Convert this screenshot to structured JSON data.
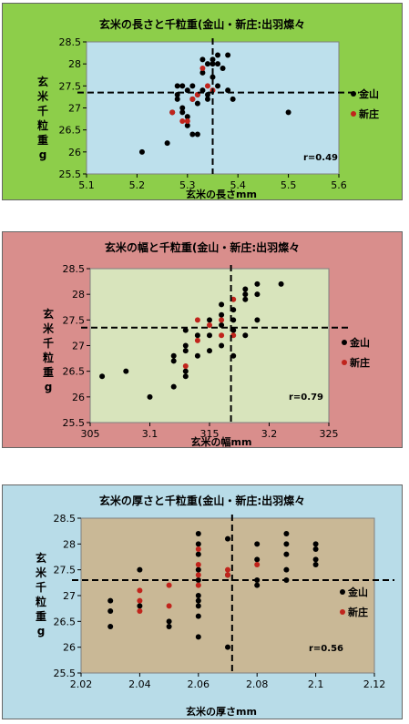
{
  "chart_data": [
    {
      "type": "scatter",
      "title": "玄米の長さと千粒重(金山・新庄:出羽燦々",
      "xlabel": "玄米の長さmm",
      "ylabel": "玄米千粒重g",
      "xlim": [
        5.1,
        5.6
      ],
      "ylim": [
        25.5,
        28.5
      ],
      "xticks": [
        5.1,
        5.2,
        5.3,
        5.4,
        5.5,
        5.6
      ],
      "xtick_labels": [
        "5.1",
        "5.2",
        "5.3",
        "5.4",
        "5.5",
        "5.6"
      ],
      "yticks": [
        25.5,
        26,
        26.5,
        27,
        27.5,
        28,
        28.5
      ],
      "ytick_labels": [
        "25.5",
        "26",
        "26.5",
        "27",
        "27.5",
        "28",
        "28.5"
      ],
      "mean_x": 5.35,
      "mean_y": 27.35,
      "annotation": "r=0.49",
      "colors": {
        "panel_bg": "#8dce4a",
        "plot_bg": "#bde0ec"
      },
      "series": [
        {
          "name": "金山",
          "color": "#000000",
          "points": [
            [
              5.21,
              26.0
            ],
            [
              5.26,
              26.2
            ],
            [
              5.27,
              26.9
            ],
            [
              5.28,
              27.5
            ],
            [
              5.28,
              27.3
            ],
            [
              5.28,
              27.2
            ],
            [
              5.29,
              27.5
            ],
            [
              5.29,
              27.0
            ],
            [
              5.3,
              27.4
            ],
            [
              5.3,
              26.8
            ],
            [
              5.3,
              26.6
            ],
            [
              5.31,
              26.4
            ],
            [
              5.31,
              27.5
            ],
            [
              5.32,
              27.3
            ],
            [
              5.32,
              26.4
            ],
            [
              5.32,
              27.1
            ],
            [
              5.33,
              28.1
            ],
            [
              5.33,
              27.8
            ],
            [
              5.33,
              27.4
            ],
            [
              5.34,
              28.0
            ],
            [
              5.34,
              27.3
            ],
            [
              5.34,
              27.2
            ],
            [
              5.35,
              28.0
            ],
            [
              5.35,
              27.7
            ],
            [
              5.36,
              28.2
            ],
            [
              5.36,
              27.5
            ],
            [
              5.36,
              28.0
            ],
            [
              5.37,
              27.9
            ],
            [
              5.38,
              28.2
            ],
            [
              5.38,
              27.4
            ],
            [
              5.39,
              27.2
            ],
            [
              5.5,
              26.9
            ],
            [
              5.29,
              26.9
            ],
            [
              5.35,
              28.1
            ],
            [
              5.31,
              27.2
            ]
          ]
        },
        {
          "name": "新庄",
          "color": "#c0241c",
          "points": [
            [
              5.27,
              26.9
            ],
            [
              5.29,
              26.7
            ],
            [
              5.3,
              26.7
            ],
            [
              5.31,
              27.2
            ],
            [
              5.32,
              27.3
            ],
            [
              5.33,
              27.9
            ],
            [
              5.34,
              27.5
            ],
            [
              5.35,
              27.4
            ]
          ]
        }
      ]
    },
    {
      "type": "scatter",
      "title": "玄米の幅と千粒重(金山・新庄:出羽燦々",
      "xlabel": "玄米の幅mm",
      "ylabel": "玄米千粒重g",
      "xlim": [
        3.05,
        3.25
      ],
      "ylim": [
        25.5,
        28.5
      ],
      "xticks": [
        3.05,
        3.1,
        3.15,
        3.2,
        3.25
      ],
      "xtick_labels": [
        "305",
        "3.1",
        "315",
        "3.2",
        "325"
      ],
      "yticks": [
        25.5,
        26,
        26.5,
        27,
        27.5,
        28,
        28.5
      ],
      "ytick_labels": [
        "25.5",
        "26",
        "26.5",
        "27",
        "27.5",
        "28",
        "28.5"
      ],
      "mean_x": 3.168,
      "mean_y": 27.35,
      "annotation": "r=0.79",
      "colors": {
        "panel_bg": "#d98e8c",
        "plot_bg": "#d8e4bc"
      },
      "series": [
        {
          "name": "金山",
          "color": "#000000",
          "points": [
            [
              3.06,
              26.4
            ],
            [
              3.08,
              26.5
            ],
            [
              3.1,
              26.0
            ],
            [
              3.12,
              26.2
            ],
            [
              3.12,
              26.7
            ],
            [
              3.12,
              26.8
            ],
            [
              3.13,
              26.4
            ],
            [
              3.13,
              26.5
            ],
            [
              3.13,
              26.9
            ],
            [
              3.13,
              27.0
            ],
            [
              3.13,
              27.3
            ],
            [
              3.14,
              26.8
            ],
            [
              3.14,
              27.2
            ],
            [
              3.15,
              27.2
            ],
            [
              3.15,
              27.5
            ],
            [
              3.15,
              26.9
            ],
            [
              3.16,
              27.4
            ],
            [
              3.16,
              27.6
            ],
            [
              3.16,
              27.0
            ],
            [
              3.17,
              27.3
            ],
            [
              3.17,
              27.5
            ],
            [
              3.17,
              26.8
            ],
            [
              3.17,
              27.7
            ],
            [
              3.18,
              27.9
            ],
            [
              3.18,
              28.0
            ],
            [
              3.18,
              28.1
            ],
            [
              3.18,
              27.2
            ],
            [
              3.19,
              28.0
            ],
            [
              3.19,
              28.2
            ],
            [
              3.19,
              27.5
            ],
            [
              3.21,
              28.2
            ],
            [
              3.16,
              27.8
            ]
          ]
        },
        {
          "name": "新庄",
          "color": "#c0241c",
          "points": [
            [
              3.13,
              26.6
            ],
            [
              3.14,
              27.1
            ],
            [
              3.14,
              27.5
            ],
            [
              3.15,
              27.4
            ],
            [
              3.16,
              27.2
            ],
            [
              3.16,
              27.5
            ],
            [
              3.17,
              27.2
            ],
            [
              3.17,
              27.9
            ]
          ]
        }
      ]
    },
    {
      "type": "scatter",
      "title": "玄米の厚さと千粒重(金山・新庄:出羽燦々",
      "xlabel": "玄米の厚さmm",
      "ylabel": "玄米千粒重g",
      "xlim": [
        2.02,
        2.12
      ],
      "ylim": [
        25.5,
        28.5
      ],
      "xticks": [
        2.02,
        2.04,
        2.06,
        2.08,
        2.1,
        2.12
      ],
      "xtick_labels": [
        "2.02",
        "2.04",
        "2.06",
        "2.08",
        "2.1",
        "2.12"
      ],
      "yticks": [
        25.5,
        26,
        26.5,
        27,
        27.5,
        28,
        28.5
      ],
      "ytick_labels": [
        "25.5",
        "26",
        "26.5",
        "27",
        "27.5",
        "28",
        "28.5"
      ],
      "mean_x": 2.0715,
      "mean_y": 27.3,
      "annotation": "r=0.56",
      "colors": {
        "panel_bg": "#b8dce8",
        "plot_bg": "#c9b896"
      },
      "series": [
        {
          "name": "金山",
          "color": "#000000",
          "points": [
            [
              2.03,
              26.4
            ],
            [
              2.03,
              26.7
            ],
            [
              2.03,
              26.9
            ],
            [
              2.04,
              27.5
            ],
            [
              2.04,
              26.8
            ],
            [
              2.05,
              26.4
            ],
            [
              2.05,
              26.5
            ],
            [
              2.06,
              26.2
            ],
            [
              2.06,
              26.6
            ],
            [
              2.06,
              26.8
            ],
            [
              2.06,
              26.9
            ],
            [
              2.06,
              27.0
            ],
            [
              2.06,
              27.3
            ],
            [
              2.06,
              27.5
            ],
            [
              2.06,
              27.8
            ],
            [
              2.06,
              28.0
            ],
            [
              2.06,
              28.2
            ],
            [
              2.07,
              26.0
            ],
            [
              2.07,
              27.4
            ],
            [
              2.07,
              28.1
            ],
            [
              2.08,
              27.2
            ],
            [
              2.08,
              27.3
            ],
            [
              2.08,
              27.7
            ],
            [
              2.08,
              28.0
            ],
            [
              2.09,
              27.3
            ],
            [
              2.09,
              27.5
            ],
            [
              2.09,
              27.8
            ],
            [
              2.09,
              28.0
            ],
            [
              2.09,
              28.2
            ],
            [
              2.1,
              27.6
            ],
            [
              2.1,
              27.7
            ],
            [
              2.1,
              27.9
            ],
            [
              2.1,
              28.0
            ]
          ]
        },
        {
          "name": "新庄",
          "color": "#c0241c",
          "points": [
            [
              2.04,
              26.7
            ],
            [
              2.04,
              26.9
            ],
            [
              2.04,
              27.1
            ],
            [
              2.05,
              27.2
            ],
            [
              2.05,
              26.8
            ],
            [
              2.06,
              27.2
            ],
            [
              2.06,
              27.4
            ],
            [
              2.06,
              27.6
            ],
            [
              2.06,
              27.9
            ],
            [
              2.07,
              27.4
            ],
            [
              2.07,
              27.5
            ],
            [
              2.08,
              27.6
            ]
          ]
        }
      ]
    }
  ]
}
